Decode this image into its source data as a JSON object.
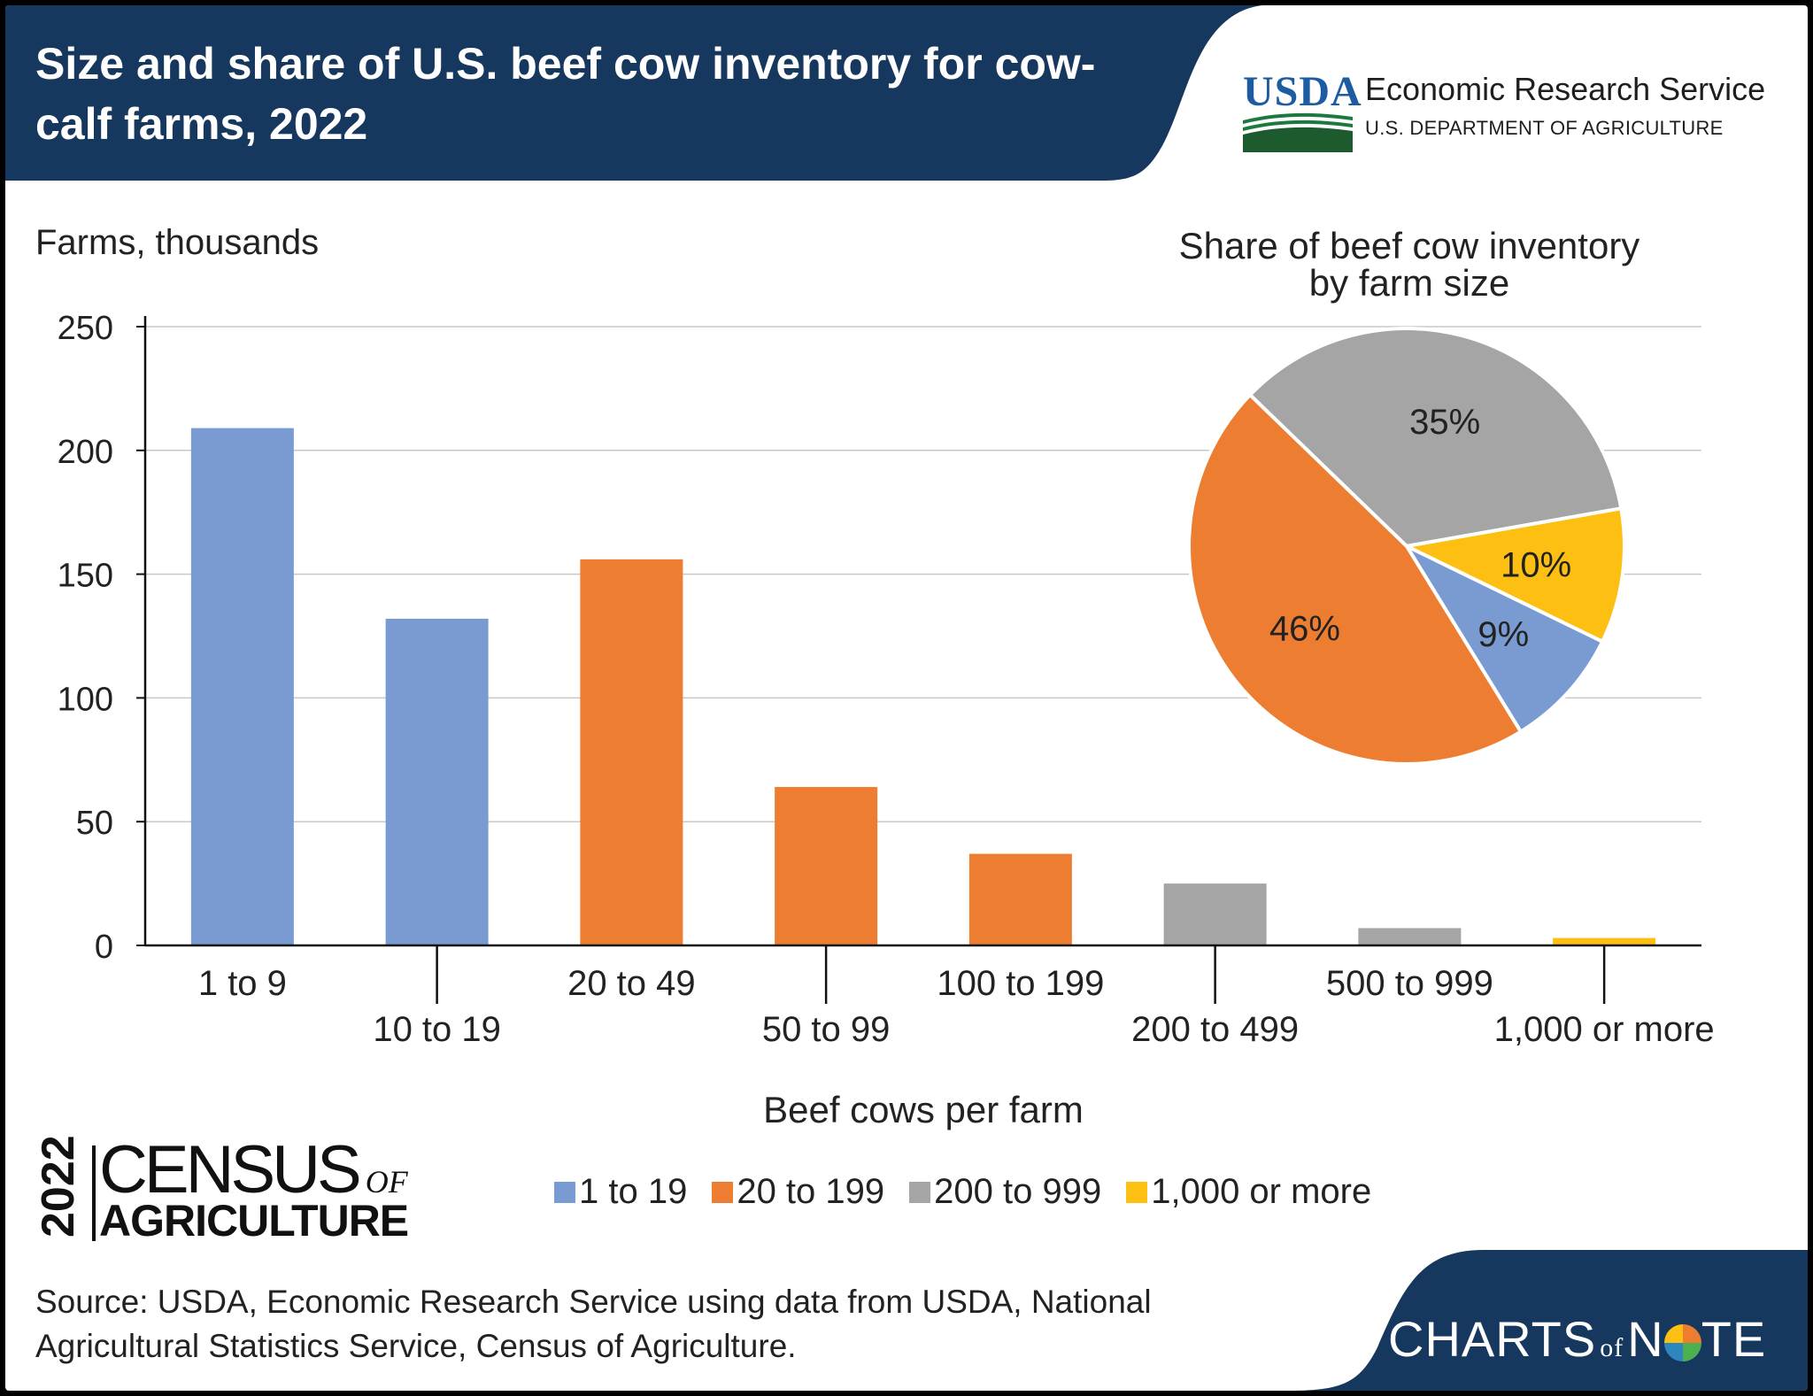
{
  "header": {
    "title": "Size and share of U.S. beef cow inventory for cow-calf farms, 2022"
  },
  "agency": {
    "logo_text": "USDA",
    "name": "Economic Research Service",
    "department": "U.S. DEPARTMENT OF AGRICULTURE"
  },
  "colors": {
    "header_blue": "#16385f",
    "blue": "#7a9bd1",
    "orange": "#ed7d31",
    "gray": "#a5a5a5",
    "yellow": "#fdc012"
  },
  "chart_data": [
    {
      "type": "bar",
      "ylabel": "Farms, thousands",
      "xlabel": "Beef cows per farm",
      "ylim": [
        0,
        250
      ],
      "yticks": [
        0,
        50,
        100,
        150,
        200,
        250
      ],
      "grid": true,
      "categories": [
        "1 to 9",
        "10 to 19",
        "20 to 49",
        "50 to 99",
        "100 to 199",
        "200 to 499",
        "500 to 999",
        "1,000 or more"
      ],
      "values": [
        209,
        132,
        156,
        64,
        37,
        25,
        7,
        3
      ],
      "groups": [
        "1 to 19",
        "1 to 19",
        "20 to 199",
        "20 to 199",
        "20 to 199",
        "200 to 999",
        "200 to 999",
        "1,000 or more"
      ],
      "legend": [
        {
          "label": "1 to 19",
          "color": "#7a9bd1"
        },
        {
          "label": "20 to 199",
          "color": "#ed7d31"
        },
        {
          "label": "200 to 999",
          "color": "#a5a5a5"
        },
        {
          "label": "1,000 or more",
          "color": "#fdc012"
        }
      ],
      "legend_position": "bottom"
    },
    {
      "type": "pie",
      "title": "Share of beef cow inventory by farm size",
      "title_lines": [
        "Share of beef cow inventory",
        "by farm size"
      ],
      "slices": [
        {
          "group": "1 to 19",
          "value": 9,
          "label": "9%",
          "color": "#7a9bd1"
        },
        {
          "group": "20 to 199",
          "value": 46,
          "label": "46%",
          "color": "#ed7d31"
        },
        {
          "group": "200 to 999",
          "value": 35,
          "label": "35%",
          "color": "#a5a5a5"
        },
        {
          "group": "1,000 or more",
          "value": 10,
          "label": "10%",
          "color": "#fdc012"
        }
      ]
    }
  ],
  "census": {
    "year": "2022",
    "word1": "CENSUS",
    "word_of": "OF",
    "word2": "AGRICULTURE"
  },
  "source": "Source: USDA, Economic Research Service using data from USDA, National Agricultural Statistics Service, Census of Agriculture.",
  "branding": {
    "charts": "CHARTS",
    "of": "of",
    "n": "N",
    "te": "TE"
  }
}
